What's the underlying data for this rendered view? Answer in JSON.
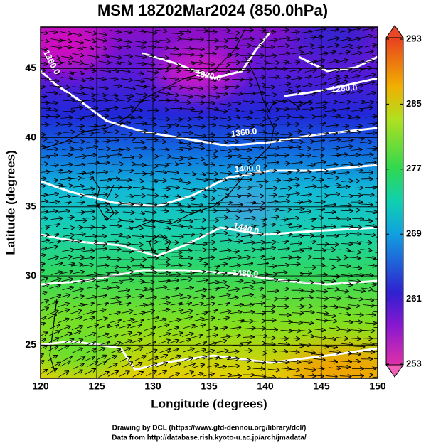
{
  "title": "MSM 18Z02Mar2024 (850.0hPa)",
  "map": {
    "xlabel": "Longitude (degrees)",
    "ylabel": "Latitude  (degrees)",
    "xlim": [
      120,
      150
    ],
    "ylim": [
      22.6,
      48
    ],
    "xticks": [
      120,
      125,
      130,
      135,
      140,
      145,
      150
    ],
    "yticks": [
      25,
      30,
      35,
      40,
      45
    ]
  },
  "colorbar": {
    "lim": [
      253,
      293
    ],
    "ticks": [
      253,
      261,
      269,
      277,
      285,
      293
    ]
  },
  "contour_labels": [
    "1360.0",
    "1320.0",
    "1280.0",
    "1360.0",
    "1400.0",
    "1440.0",
    "1480.0"
  ],
  "footer": [
    "Drawing by DCL (https://www.gfd-dennou.org/library/dcl/)",
    "Data from http://database.rish.kyoto-u.ac.jp/arch/jmadata/"
  ]
}
